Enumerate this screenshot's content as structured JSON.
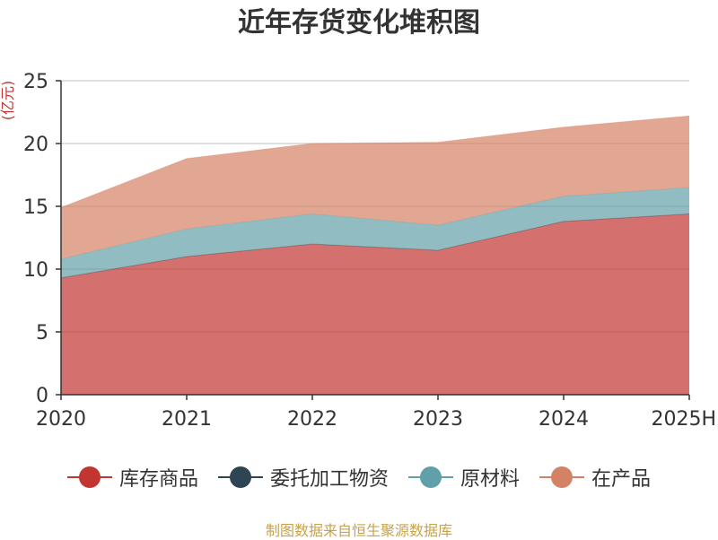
{
  "title": "近年存货变化堆积图",
  "source_note": "制图数据来自恒生聚源数据库",
  "chart_data": {
    "type": "area",
    "stacked": true,
    "title": "近年存货变化堆积图",
    "ylabel": "亿元",
    "xlabel": "",
    "categories": [
      "2020",
      "2021",
      "2022",
      "2023",
      "2024",
      "2025H"
    ],
    "ylim": [
      0,
      25
    ],
    "yticks": [
      0,
      5,
      10,
      15,
      20,
      25
    ],
    "grid": true,
    "legend_position": "bottom",
    "series": [
      {
        "name": "库存商品",
        "color": "#c23531",
        "values": [
          9.3,
          11.0,
          12.0,
          11.5,
          13.8,
          14.4
        ]
      },
      {
        "name": "委托加工物资",
        "color": "#2f4554",
        "values": [
          0,
          0,
          0,
          0,
          0,
          0
        ]
      },
      {
        "name": "原材料",
        "color": "#61a0a8",
        "values": [
          1.5,
          2.2,
          2.4,
          2.0,
          2.0,
          2.1
        ]
      },
      {
        "name": "在产品",
        "color": "#d48265",
        "values": [
          4.1,
          5.6,
          5.6,
          6.6,
          5.5,
          5.7
        ]
      }
    ]
  }
}
